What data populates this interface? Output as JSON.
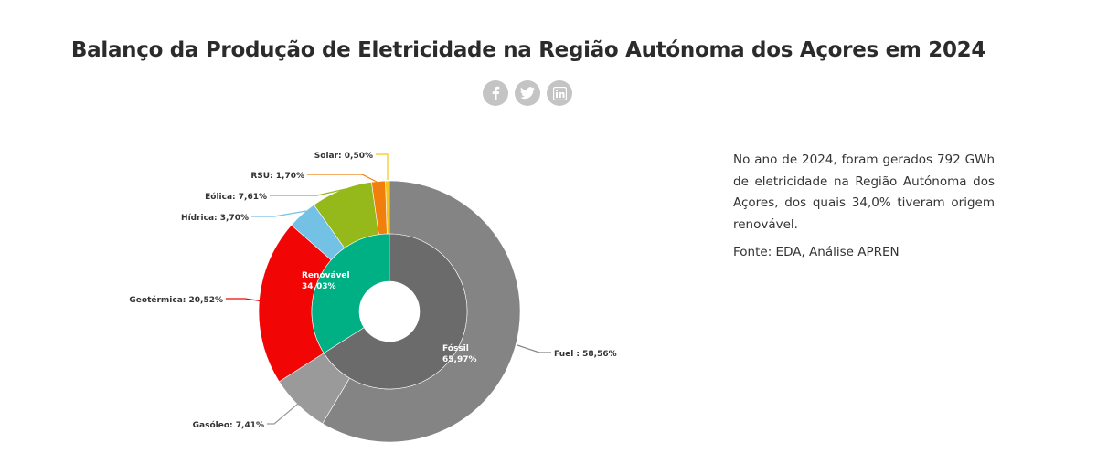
{
  "page": {
    "title": "Balanço da Produção de Eletricidade na Região Autónoma dos Açores em 2024",
    "description": "No ano de 2024, foram gerados 792 GWh de eletricidade na Região Autónoma dos Açores, dos quais 34,0% tiveram origem renovável.",
    "source": "Fonte: EDA, Análise APREN",
    "social": [
      {
        "name": "facebook",
        "icon": "facebook-icon",
        "glyph": "f"
      },
      {
        "name": "twitter",
        "icon": "twitter-icon",
        "glyph": ""
      },
      {
        "name": "linkedin",
        "icon": "linkedin-icon",
        "glyph": "in"
      }
    ]
  },
  "chart_data": {
    "type": "pie",
    "subtype": "nested-donut",
    "title": "Balanço da Produção de Eletricidade na Região Autónoma dos Açores em 2024",
    "inner": [
      {
        "name": "Renovável",
        "label": "Renovável",
        "value_label": "34,03%",
        "value": 34.03,
        "color": "#00b085"
      },
      {
        "name": "Fóssil",
        "label": "Fóssil",
        "value_label": "65,97%",
        "value": 65.97,
        "color": "#6b6b6b"
      }
    ],
    "outer": [
      {
        "name": "Solar",
        "label": "Solar: 0,50%",
        "value": 0.5,
        "color": "#f5c518",
        "group": "Renovável"
      },
      {
        "name": "RSU",
        "label": "RSU: 1,70%",
        "value": 1.7,
        "color": "#f07f0c",
        "group": "Renovável"
      },
      {
        "name": "Eólica",
        "label": "Eólica: 7,61%",
        "value": 7.61,
        "color": "#95b81b",
        "group": "Renovável"
      },
      {
        "name": "Hídrica",
        "label": "Hídrica: 3,70%",
        "value": 3.7,
        "color": "#74c1e6",
        "group": "Renovável"
      },
      {
        "name": "Geotérmica",
        "label": "Geotérmica: 20,52%",
        "value": 20.52,
        "color": "#f20505",
        "group": "Renovável"
      },
      {
        "name": "Gasóleo",
        "label": "Gasóleo: 7,41%",
        "value": 7.41,
        "color": "#9a9a9a",
        "group": "Fóssil"
      },
      {
        "name": "Fuel",
        "label": "Fuel : 58,56%",
        "value": 58.56,
        "color": "#848484",
        "group": "Fóssil"
      }
    ],
    "start_angle": "12 o'clock",
    "direction": "counter-clockwise for renewables, clockwise for fossil",
    "legend": "none (labels with leader lines)"
  }
}
